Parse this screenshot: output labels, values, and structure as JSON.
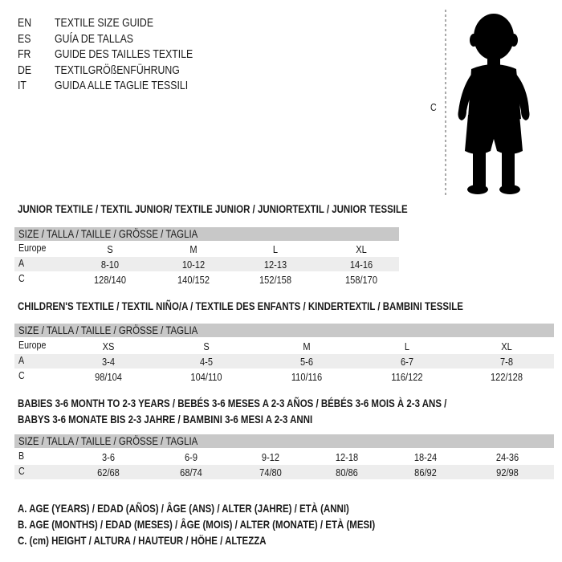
{
  "languages": [
    {
      "code": "EN",
      "title": "TEXTILE SIZE GUIDE"
    },
    {
      "code": "ES",
      "title": "GUÍA DE TALLAS"
    },
    {
      "code": "FR",
      "title": "GUIDE DES TAILLES TEXTILE"
    },
    {
      "code": "DE",
      "title": "TEXTILGRÖßENFÜHRUNG"
    },
    {
      "code": "IT",
      "title": "GUIDA ALLE TAGLIE TESSILI"
    }
  ],
  "figure": {
    "measure_label": "C",
    "icon": "child-silhouette"
  },
  "size_header": "SIZE / TALLA / TAILLE / GRÖSSE / TAGLIA",
  "junior": {
    "heading": "JUNIOR TEXTILE / TEXTIL JUNIOR/ TEXTILE JUNIOR / JUNIORTEXTIL / JUNIOR TESSILE",
    "rows": [
      {
        "label": "Europe",
        "values": [
          "S",
          "M",
          "L",
          "XL"
        ]
      },
      {
        "label": "A",
        "values": [
          "8-10",
          "10-12",
          "12-13",
          "14-16"
        ]
      },
      {
        "label": "C",
        "values": [
          "128/140",
          "140/152",
          "152/158",
          "158/170"
        ]
      }
    ]
  },
  "children": {
    "heading": "CHILDREN'S TEXTILE / TEXTIL NIÑO/A / TEXTILE DES ENFANTS / KINDERTEXTIL / BAMBINI TESSILE",
    "rows": [
      {
        "label": "Europe",
        "values": [
          "XS",
          "S",
          "M",
          "L",
          "XL"
        ]
      },
      {
        "label": "A",
        "values": [
          "3-4",
          "4-5",
          "5-6",
          "6-7",
          "7-8"
        ]
      },
      {
        "label": "C",
        "values": [
          "98/104",
          "104/110",
          "110/116",
          "116/122",
          "122/128"
        ]
      }
    ]
  },
  "babies": {
    "heading_line1": "BABIES 3-6 MONTH TO 2-3 YEARS / BEBÉS 3-6 MESES A 2-3 AÑOS / BÉBÉS 3-6 MOIS À 2-3 ANS /",
    "heading_line2": "BABYS 3-6 MONATE BIS 2-3 JAHRE / BAMBINI 3-6 MESI A 2-3 ANNI",
    "rows": [
      {
        "label": "B",
        "values": [
          "3-6",
          "6-9",
          "9-12",
          "12-18",
          "18-24",
          "24-36"
        ]
      },
      {
        "label": "C",
        "values": [
          "62/68",
          "68/74",
          "74/80",
          "80/86",
          "86/92",
          "92/98"
        ]
      }
    ]
  },
  "legend": [
    "A. AGE (YEARS) / EDAD (AÑOS) / ÂGE (ANS) / ALTER (JAHRE) / ETÀ (ANNI)",
    "B. AGE (MONTHS) / EDAD (MESES) / ÂGE (MOIS) / ALTER (MONATE) / ETÀ (MESI)",
    "C. (cm) HEIGHT / ALTURA / HAUTEUR / HÖHE / ALTEZZA"
  ]
}
